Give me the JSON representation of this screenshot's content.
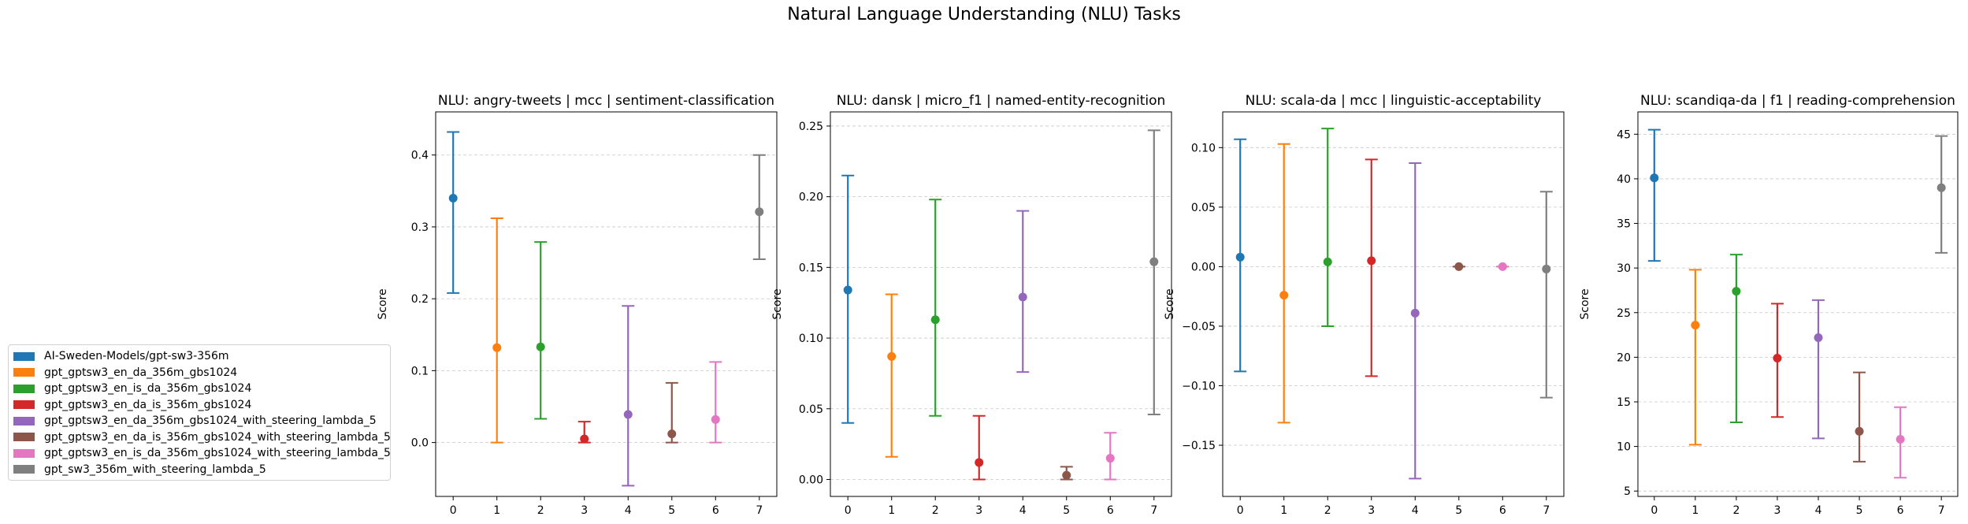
{
  "suptitle": "Natural Language Understanding (NLU) Tasks",
  "colors": [
    "#1f77b4",
    "#ff7f0e",
    "#2ca02c",
    "#d62728",
    "#9467bd",
    "#8c564b",
    "#e377c2",
    "#7f7f7f"
  ],
  "legend": [
    "AI-Sweden-Models/gpt-sw3-356m",
    "gpt_gptsw3_en_da_356m_gbs1024",
    "gpt_gptsw3_en_is_da_356m_gbs1024",
    "gpt_gptsw3_en_da_is_356m_gbs1024",
    "gpt_gptsw3_en_da_356m_gbs1024_with_steering_lambda_5",
    "gpt_gptsw3_en_da_is_356m_gbs1024_with_steering_lambda_5",
    "gpt_gptsw3_en_is_da_356m_gbs1024_with_steering_lambda_5",
    "gpt_sw3_356m_with_steering_lambda_5"
  ],
  "chart_data": [
    {
      "type": "scatter",
      "title": "NLU: angry-tweets | mcc | sentiment-classification",
      "ylabel": "Score",
      "x": [
        0,
        1,
        2,
        3,
        4,
        5,
        6,
        7
      ],
      "y": [
        0.34,
        0.132,
        0.133,
        0.005,
        0.039,
        0.012,
        0.032,
        0.321
      ],
      "err_low": [
        0.208,
        0.0,
        0.033,
        0.0,
        -0.06,
        0.0,
        0.0,
        0.255
      ],
      "err_high": [
        0.432,
        0.312,
        0.279,
        0.029,
        0.19,
        0.083,
        0.112,
        0.4
      ],
      "ylim": [
        -0.075,
        0.46
      ],
      "yticks": [
        0.0,
        0.1,
        0.2,
        0.3,
        0.4
      ],
      "yticklabels": [
        "0.0",
        "0.1",
        "0.2",
        "0.3",
        "0.4"
      ],
      "grid": "y"
    },
    {
      "type": "scatter",
      "title": "NLU: dansk | micro_f1 | named-entity-recognition",
      "ylabel": "Score",
      "x": [
        0,
        1,
        2,
        3,
        4,
        5,
        6,
        7
      ],
      "y": [
        0.134,
        0.087,
        0.113,
        0.012,
        0.129,
        0.003,
        0.015,
        0.154
      ],
      "err_low": [
        0.04,
        0.016,
        0.045,
        0.0,
        0.076,
        0.0,
        0.0,
        0.046
      ],
      "err_high": [
        0.215,
        0.131,
        0.198,
        0.045,
        0.19,
        0.009,
        0.033,
        0.247
      ],
      "ylim": [
        -0.012,
        0.26
      ],
      "yticks": [
        0.0,
        0.05,
        0.1,
        0.15,
        0.2,
        0.25
      ],
      "yticklabels": [
        "0.00",
        "0.05",
        "0.10",
        "0.15",
        "0.20",
        "0.25"
      ],
      "grid": "y"
    },
    {
      "type": "scatter",
      "title": "NLU: scala-da | mcc | linguistic-acceptability",
      "ylabel": "Score",
      "x": [
        0,
        1,
        2,
        3,
        4,
        5,
        6,
        7
      ],
      "y": [
        0.008,
        -0.024,
        0.004,
        0.005,
        -0.039,
        0.0,
        0.0,
        -0.002
      ],
      "err_low": [
        -0.088,
        -0.131,
        -0.05,
        -0.092,
        -0.178,
        0.0,
        0.0,
        -0.11
      ],
      "err_high": [
        0.107,
        0.103,
        0.116,
        0.09,
        0.087,
        0.0,
        0.0,
        0.063
      ],
      "ylim": [
        -0.193,
        0.13
      ],
      "yticks": [
        -0.15,
        -0.1,
        -0.05,
        0.0,
        0.05,
        0.1
      ],
      "yticklabels": [
        "−0.15",
        "−0.10",
        "−0.05",
        "0.00",
        "0.05",
        "0.10"
      ],
      "grid": "y"
    },
    {
      "type": "scatter",
      "title": "NLU: scandiqa-da | f1 | reading-comprehension",
      "ylabel": "Score",
      "x": [
        0,
        1,
        2,
        3,
        4,
        5,
        6,
        7
      ],
      "y": [
        40.1,
        23.6,
        27.4,
        19.9,
        22.2,
        11.7,
        10.8,
        39.0
      ],
      "err_low": [
        30.8,
        10.2,
        12.7,
        13.3,
        10.9,
        8.3,
        6.5,
        31.7
      ],
      "err_high": [
        45.5,
        29.8,
        31.5,
        26.0,
        26.4,
        18.3,
        14.4,
        44.8
      ],
      "ylim": [
        4.4,
        47.5
      ],
      "yticks": [
        5,
        10,
        15,
        20,
        25,
        30,
        35,
        40,
        45
      ],
      "yticklabels": [
        "5",
        "10",
        "15",
        "20",
        "25",
        "30",
        "35",
        "40",
        "45"
      ],
      "grid": "y"
    }
  ]
}
